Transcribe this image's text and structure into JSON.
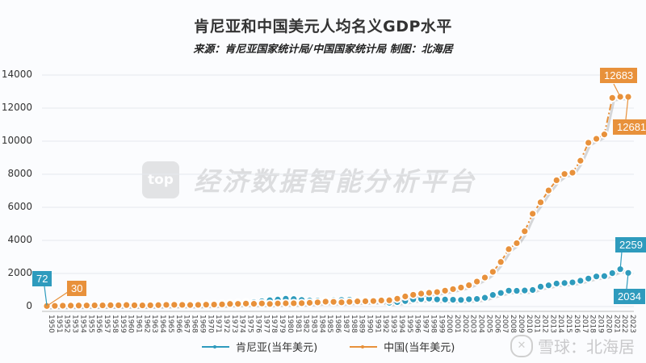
{
  "header": {
    "title": "肯尼亚和中国美元人均名义GDP水平",
    "subtitle": "来源：肯尼亚国家统计局/中国国家统计局 制图：北海居"
  },
  "watermark": {
    "logo_text": "top",
    "text": "经济数据智能分析平台"
  },
  "credit": {
    "icon": "snowball-logo-icon",
    "text": "雪球：北海居"
  },
  "colors": {
    "kenya": "#2e9bbd",
    "china": "#e8913b",
    "grid": "#e6e9ee",
    "axis": "#bbbbbb"
  },
  "callouts": {
    "kenya_start": "72",
    "china_start": "30",
    "china_peak": "12683",
    "china_end": "12681",
    "kenya_peak": "2259",
    "kenya_end": "2034"
  },
  "legend": {
    "kenya": "肯尼亚(当年美元)",
    "china": "中国(当年美元)"
  },
  "chart_data": {
    "type": "line",
    "title": "肯尼亚和中国美元人均名义GDP水平",
    "subtitle": "来源：肯尼亚国家统计局/中国国家统计局 制图：北海居",
    "xlabel": "",
    "ylabel": "",
    "ylim": [
      0,
      14000
    ],
    "yticks": [
      0,
      2000,
      4000,
      6000,
      8000,
      10000,
      12000,
      14000
    ],
    "grid": true,
    "legend_position": "bottom",
    "x": [
      1950,
      1951,
      1952,
      1953,
      1954,
      1955,
      1956,
      1957,
      1958,
      1959,
      1960,
      1961,
      1962,
      1963,
      1964,
      1965,
      1966,
      1967,
      1968,
      1969,
      1970,
      1971,
      1972,
      1973,
      1974,
      1975,
      1976,
      1977,
      1978,
      1979,
      1980,
      1981,
      1982,
      1983,
      1984,
      1985,
      1986,
      1987,
      1988,
      1989,
      1990,
      1991,
      1992,
      1993,
      1994,
      1995,
      1996,
      1997,
      1998,
      1999,
      2000,
      2001,
      2002,
      2003,
      2004,
      2005,
      2006,
      2007,
      2008,
      2009,
      2010,
      2011,
      2012,
      2013,
      2014,
      2015,
      2016,
      2017,
      2018,
      2019,
      2020,
      2021,
      2022,
      2023
    ],
    "series": [
      {
        "name": "肯尼亚(当年美元)",
        "values": [
          72,
          75,
          80,
          85,
          88,
          90,
          92,
          95,
          97,
          98,
          100,
          98,
          100,
          105,
          110,
          112,
          120,
          125,
          130,
          135,
          145,
          160,
          180,
          200,
          230,
          250,
          270,
          320,
          380,
          420,
          470,
          450,
          400,
          360,
          360,
          350,
          380,
          400,
          410,
          390,
          390,
          360,
          330,
          230,
          270,
          330,
          430,
          450,
          480,
          430,
          420,
          410,
          400,
          440,
          460,
          530,
          700,
          820,
          960,
          950,
          970,
          1000,
          1200,
          1280,
          1390,
          1420,
          1460,
          1560,
          1690,
          1820,
          1840,
          2020,
          2259,
          2034
        ]
      },
      {
        "name": "中国(当年美元)",
        "values": [
          30,
          40,
          50,
          55,
          60,
          65,
          70,
          70,
          80,
          75,
          90,
          75,
          70,
          75,
          85,
          100,
          105,
          100,
          92,
          100,
          113,
          118,
          131,
          157,
          160,
          178,
          165,
          185,
          156,
          183,
          195,
          197,
          203,
          225,
          251,
          294,
          282,
          252,
          284,
          311,
          318,
          333,
          366,
          377,
          473,
          610,
          709,
          781,
          828,
          873,
          959,
          1053,
          1148,
          1288,
          1508,
          1753,
          2099,
          2694,
          3468,
          3832,
          4550,
          5614,
          6301,
          7020,
          7636,
          8016,
          8094,
          8817,
          9905,
          10144,
          10409,
          12617,
          12683,
          12681
        ]
      }
    ],
    "annotations": [
      {
        "series": "肯尼亚(当年美元)",
        "x": 1950,
        "label": "72"
      },
      {
        "series": "中国(当年美元)",
        "x": 1950,
        "label": "30"
      },
      {
        "series": "中国(当年美元)",
        "x": 2022,
        "label": "12683"
      },
      {
        "series": "中国(当年美元)",
        "x": 2023,
        "label": "12681"
      },
      {
        "series": "肯尼亚(当年美元)",
        "x": 2022,
        "label": "2259"
      },
      {
        "series": "肯尼亚(当年美元)",
        "x": 2023,
        "label": "2034"
      }
    ]
  }
}
